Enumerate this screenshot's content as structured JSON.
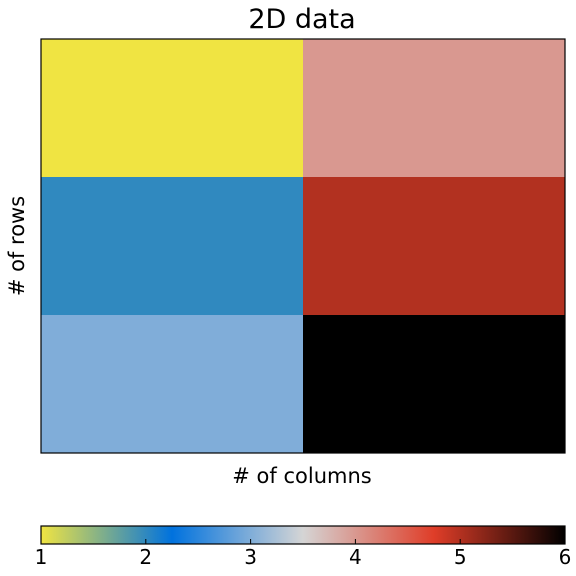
{
  "chart_data": {
    "type": "heatmap",
    "title": "2D data",
    "xlabel": "# of columns",
    "ylabel": "# of rows",
    "rows": 3,
    "columns": 2,
    "values": [
      [
        1,
        4
      ],
      [
        2,
        5
      ],
      [
        3,
        6
      ]
    ],
    "colorbar": {
      "orientation": "horizontal",
      "placement": "bottom",
      "range": [
        1,
        6
      ],
      "ticks": [
        "1",
        "2",
        "3",
        "4",
        "5",
        "6"
      ],
      "colors": [
        "#f0e442",
        "#0072de",
        "#d5d5d5",
        "#df3d28",
        "#000000"
      ]
    },
    "axis_ticks_shown": false
  }
}
